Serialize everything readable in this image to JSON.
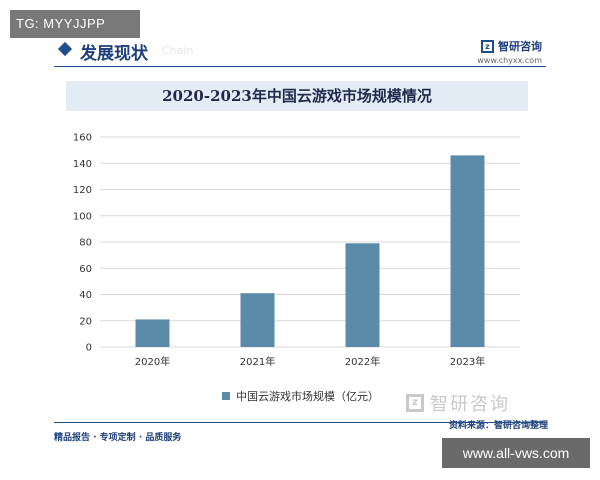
{
  "overlay": {
    "top_text": "TG: MYYJJPP",
    "bottom_text": "www.all-vws.com"
  },
  "header": {
    "section_title": "发展现状",
    "ghost_text": "Chain",
    "brand_name": "智研咨询",
    "brand_url": "www.chyxx.com"
  },
  "colors": {
    "bar": "#5b8ba8",
    "accent": "#1f4e8c",
    "title_bar_bg": "#e3ebf5",
    "grid": "#d9d9d9"
  },
  "chart_data": {
    "type": "bar",
    "title": "2020-2023年中国云游戏市场规模情况",
    "categories": [
      "2020年",
      "2021年",
      "2022年",
      "2023年"
    ],
    "series": [
      {
        "name": "中国云游戏市场规模（亿元）",
        "values": [
          21,
          41,
          79,
          146
        ]
      }
    ],
    "ylim": [
      0,
      160
    ],
    "yticks": [
      0,
      20,
      40,
      60,
      80,
      100,
      120,
      140,
      160
    ],
    "grid": true,
    "legend_position": "bottom"
  },
  "watermark": {
    "text": "智研咨询"
  },
  "footer": {
    "left_text": "精品报告 · 专项定制 · 品质服务",
    "right_text": "资料来源：智研咨询整理"
  }
}
